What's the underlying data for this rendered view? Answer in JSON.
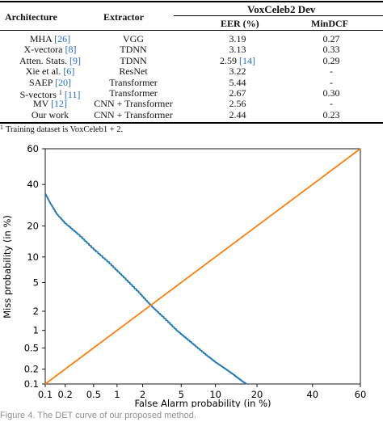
{
  "table": {
    "headers": {
      "architecture": "Architecture",
      "extractor": "Extractor",
      "dataset": "VoxCeleb2 Dev",
      "eer": "EER (%)",
      "mindcf": "MinDCF"
    },
    "rows": [
      {
        "name": "MHA",
        "ref": "[26]",
        "sup": "",
        "extractor": "VGG",
        "eer": "3.19",
        "eer_ref": "",
        "mindcf": "0.27"
      },
      {
        "name": "X-vectora",
        "ref": "[8]",
        "sup": "",
        "extractor": "TDNN",
        "eer": "3.13",
        "eer_ref": "",
        "mindcf": "0.33"
      },
      {
        "name": "Atten. Stats.",
        "ref": "[9]",
        "sup": "",
        "extractor": "TDNN",
        "eer": "2.59",
        "eer_ref": "[14]",
        "mindcf": "0.29"
      },
      {
        "name": "Xie et al.",
        "ref": "[6]",
        "sup": "",
        "extractor": "ResNet",
        "eer": "3.22",
        "eer_ref": "",
        "mindcf": "-"
      },
      {
        "name": "SAEP",
        "ref": "[20]",
        "sup": "",
        "extractor": "Transformer",
        "eer": "5.44",
        "eer_ref": "",
        "mindcf": "-"
      },
      {
        "name": "S-vectors",
        "ref": "[11]",
        "sup": "1",
        "extractor": "Transformer",
        "eer": "2.67",
        "eer_ref": "",
        "mindcf": "0.30"
      },
      {
        "name": "MV",
        "ref": "[12]",
        "sup": "",
        "extractor": "CNN + Transformer",
        "eer": "2.56",
        "eer_ref": "",
        "mindcf": "-"
      },
      {
        "name": "Our work",
        "ref": "",
        "sup": "",
        "extractor": "CNN + Transformer",
        "eer": "2.44",
        "eer_ref": "",
        "mindcf": "0.23"
      }
    ],
    "footnote_mark": "1",
    "footnote": "Training dataset is VoxCeleb1 + 2."
  },
  "chart_data": {
    "type": "line",
    "xlabel": "False Alarm probability (in %)",
    "ylabel": "Miss probability (in %)",
    "xscale": "normal-deviate (probit)",
    "yscale": "normal-deviate (probit)",
    "xlim": [
      0.1,
      60
    ],
    "ylim": [
      0.1,
      60
    ],
    "xticks": [
      "0.1",
      "0.2",
      "0.5",
      "1",
      "2",
      "5",
      "10",
      "20",
      "40",
      "60"
    ],
    "yticks": [
      "0.1",
      "0.2",
      "0.5",
      "1",
      "2",
      "5",
      "10",
      "20",
      "40",
      "60"
    ],
    "grid": false,
    "legend": "none",
    "series": [
      {
        "color": "#1f77b4",
        "x": [
          0.1,
          0.12,
          0.15,
          0.2,
          0.3,
          0.5,
          0.8,
          1.2,
          1.8,
          2.44,
          3.2,
          4.5,
          6.0,
          8.0,
          10.0,
          12.0,
          14.0,
          15.5,
          17.0
        ],
        "y": [
          35.0,
          30.0,
          25.0,
          21.0,
          17.0,
          12.0,
          8.5,
          5.8,
          3.7,
          2.44,
          1.7,
          1.0,
          0.65,
          0.4,
          0.27,
          0.2,
          0.15,
          0.12,
          0.1
        ]
      },
      {
        "color": "#ff7f0e",
        "x": [
          0.1,
          60
        ],
        "y": [
          0.1,
          60
        ]
      }
    ]
  },
  "caption": "Figure 4. The DET curve of our proposed method."
}
